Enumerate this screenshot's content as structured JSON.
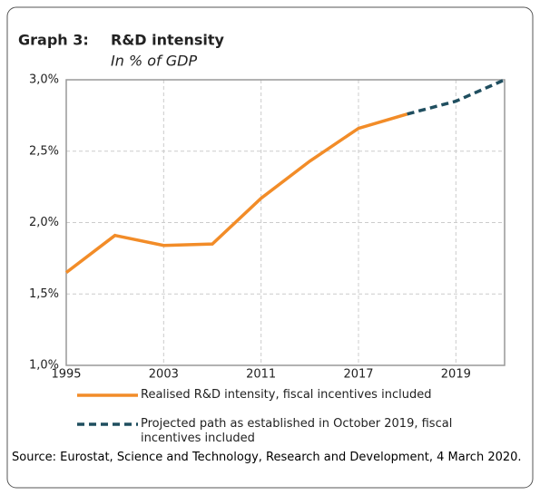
{
  "chart_data": {
    "type": "line",
    "title_prefix": "Graph 3:",
    "title": "R&D intensity",
    "subtitle": "In % of GDP",
    "categories": [
      "1995",
      null,
      "2003",
      null,
      "2011",
      null,
      "2017",
      null,
      "2019",
      null
    ],
    "series": [
      {
        "name": "Realised R&D intensity, fiscal incentives included",
        "color": "#f28c28",
        "dashed": false,
        "values": [
          1.65,
          1.91,
          1.84,
          1.85,
          2.17,
          2.43,
          2.66,
          2.76,
          null,
          null
        ]
      },
      {
        "name": "Projected path as established in October 2019, fiscal incentives included",
        "color": "#1f4e5f",
        "dashed": true,
        "values": [
          null,
          null,
          null,
          null,
          null,
          null,
          null,
          2.76,
          2.85,
          3.0
        ]
      }
    ],
    "ylim": [
      1.0,
      3.0
    ],
    "yticks": [
      {
        "value": 1.0,
        "label": "1,0%"
      },
      {
        "value": 1.5,
        "label": "1,5%"
      },
      {
        "value": 2.0,
        "label": "2,0%"
      },
      {
        "value": 2.5,
        "label": "2,5%"
      },
      {
        "value": 3.0,
        "label": "3,0%"
      }
    ],
    "grid": true,
    "source": "Source: Eurostat, Science and Technology, Research and Development, 4 March 2020."
  }
}
